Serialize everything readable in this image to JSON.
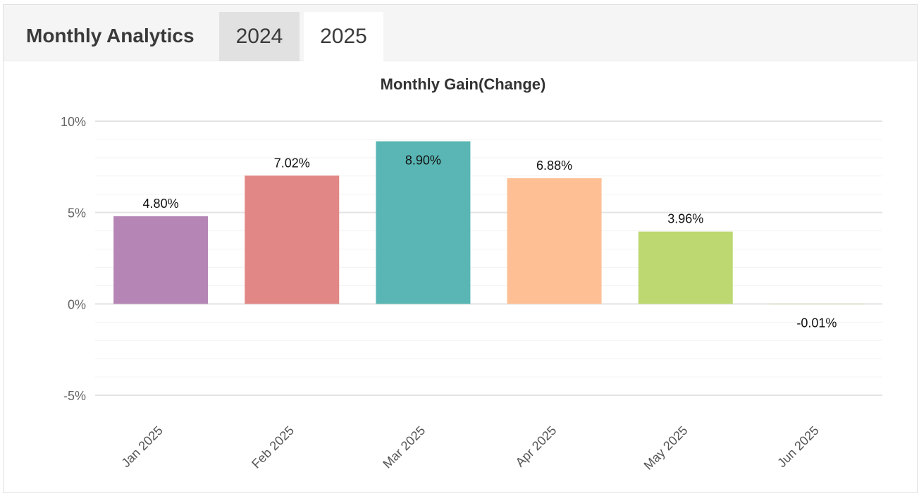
{
  "header": {
    "title": "Monthly Analytics",
    "tabs": [
      {
        "label": "2024",
        "active": false
      },
      {
        "label": "2025",
        "active": true
      }
    ]
  },
  "chart_data": {
    "type": "bar",
    "title": "Monthly Gain(Change)",
    "categories": [
      "Jan 2025",
      "Feb 2025",
      "Mar 2025",
      "Apr 2025",
      "May 2025",
      "Jun 2025"
    ],
    "values": [
      4.8,
      7.02,
      8.9,
      6.88,
      3.96,
      -0.01
    ],
    "data_labels": [
      "4.80%",
      "7.02%",
      "8.90%",
      "6.88%",
      "3.96%",
      "-0.01%"
    ],
    "colors": [
      "#b586b5",
      "#e18786",
      "#59b6b4",
      "#febf95",
      "#bdd871",
      "#bdd871"
    ],
    "ylim": [
      -5,
      10
    ],
    "yticks": [
      {
        "value": 10,
        "label": "10%"
      },
      {
        "value": 5,
        "label": "5%"
      },
      {
        "value": 0,
        "label": "0%"
      },
      {
        "value": -5,
        "label": "-5%"
      }
    ],
    "minor_step": 1,
    "grid": true,
    "legend": "none"
  }
}
